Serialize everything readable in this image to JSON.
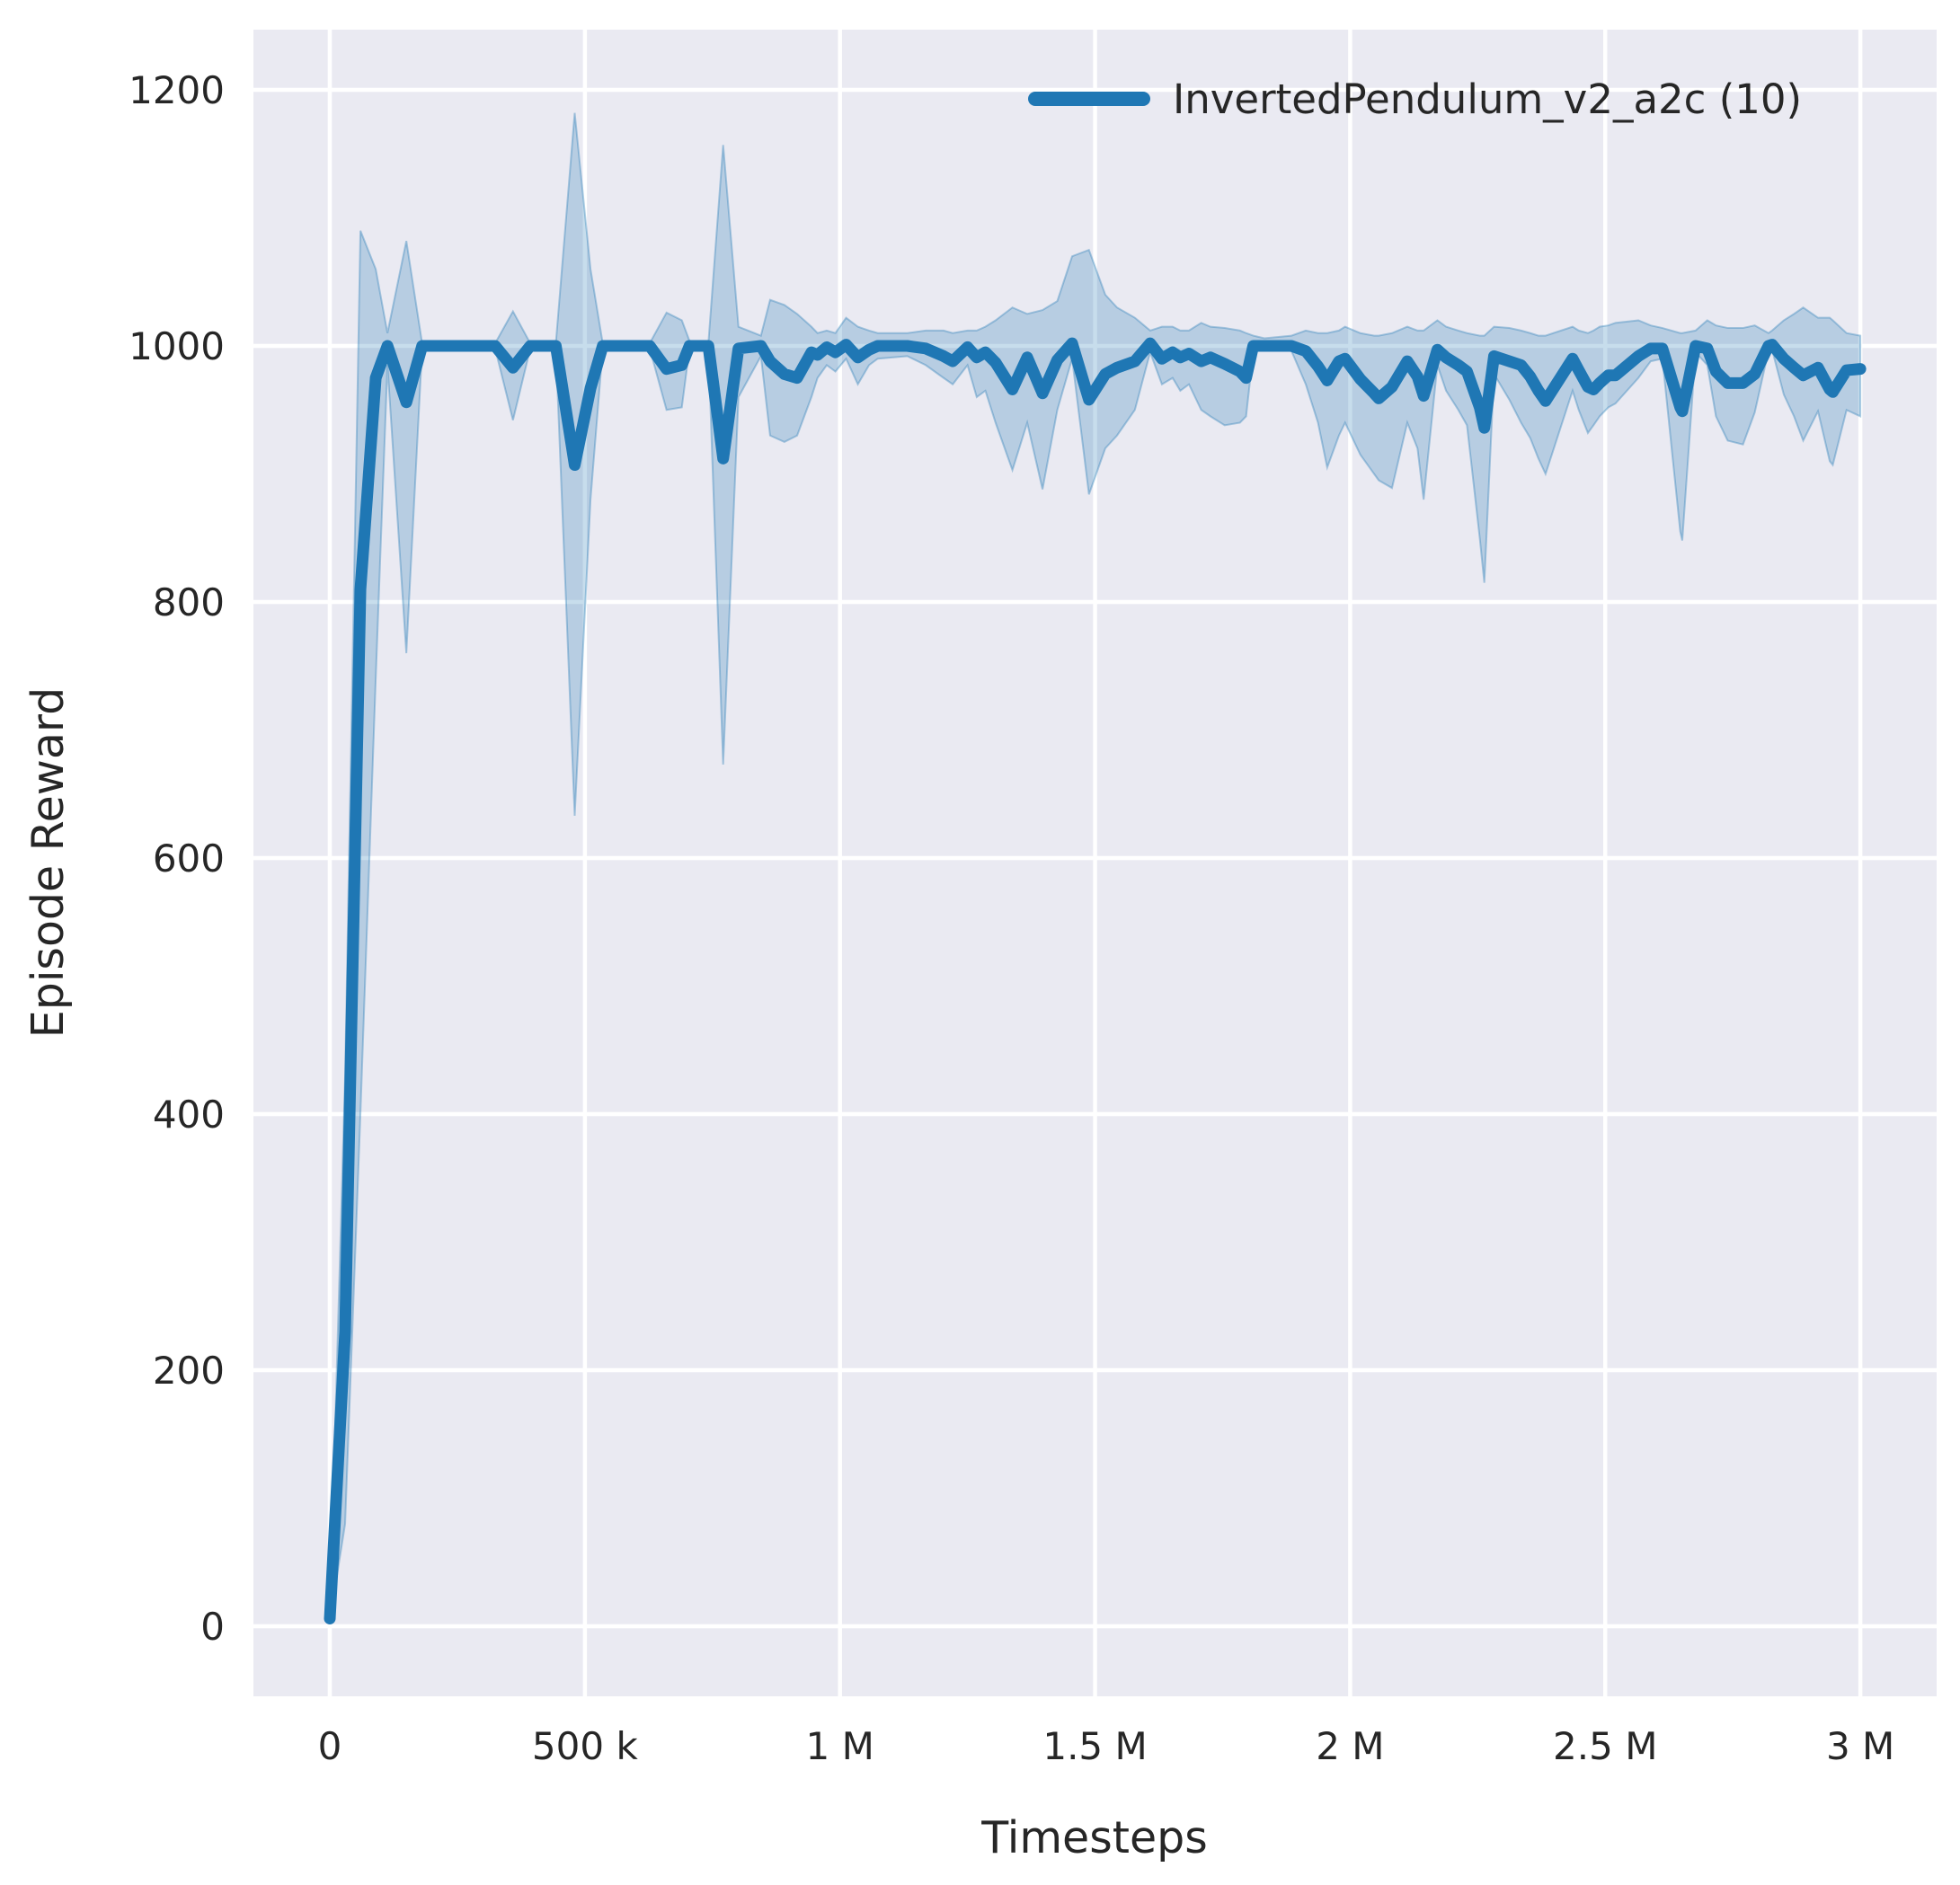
{
  "figure": {
    "background": "#ffffff",
    "axes_background": "#eaeaf2",
    "gridline_color": "#ffffff"
  },
  "legend": {
    "label": "InvertedPendulum_v2_a2c (10)",
    "line_color": "#1f77b4"
  },
  "chart_data": {
    "type": "line",
    "title": "",
    "xlabel": "Timesteps",
    "ylabel": "Episode Reward",
    "grid": true,
    "legend_position": "upper right",
    "xlim_timesteps": [
      -150000,
      3150000
    ],
    "ylim": [
      -55,
      1247
    ],
    "x_ticks": [
      {
        "value_k": 0,
        "label": "0"
      },
      {
        "value_k": 500,
        "label": "500 k"
      },
      {
        "value_k": 1000,
        "label": "1 M"
      },
      {
        "value_k": 1500,
        "label": "1.5 M"
      },
      {
        "value_k": 2000,
        "label": "2 M"
      },
      {
        "value_k": 2500,
        "label": "2.5 M"
      },
      {
        "value_k": 3000,
        "label": "3 M"
      }
    ],
    "y_ticks": [
      {
        "value": 0,
        "label": "0"
      },
      {
        "value": 200,
        "label": "200"
      },
      {
        "value": 400,
        "label": "400"
      },
      {
        "value": 600,
        "label": "600"
      },
      {
        "value": 800,
        "label": "800"
      },
      {
        "value": 1000,
        "label": "1000"
      },
      {
        "value": 1200,
        "label": "1200"
      }
    ],
    "series": [
      {
        "name": "InvertedPendulum_v2_a2c (10)",
        "color": "#1f77b4",
        "band_fill_opacity": 0.25,
        "x_timesteps_k": [
          0,
          30,
          60,
          90,
          113,
          150,
          181,
          240,
          324,
          359,
          393,
          443,
          480,
          511,
          535,
          600,
          627,
          660,
          690,
          705,
          742,
          771,
          801,
          845,
          863,
          891,
          916,
          944,
          956,
          974,
          991,
          1012,
          1035,
          1057,
          1074,
          1132,
          1168,
          1203,
          1221,
          1250,
          1268,
          1285,
          1305,
          1338,
          1367,
          1397,
          1426,
          1455,
          1488,
          1520,
          1543,
          1578,
          1608,
          1631,
          1652,
          1667,
          1684,
          1708,
          1726,
          1754,
          1784,
          1796,
          1810,
          1832,
          1885,
          1913,
          1937,
          1955,
          1978,
          1990,
          2020,
          2047,
          2056,
          2082,
          2112,
          2132,
          2144,
          2171,
          2188,
          2212,
          2229,
          2254,
          2263,
          2282,
          2312,
          2335,
          2353,
          2369,
          2383,
          2436,
          2448,
          2466,
          2477,
          2489,
          2506,
          2520,
          2565,
          2589,
          2612,
          2647,
          2651,
          2677,
          2700,
          2717,
          2740,
          2770,
          2793,
          2820,
          2827,
          2850,
          2870,
          2888,
          2917,
          2940,
          2946,
          2973,
          3000
        ],
        "mean_reward": [
          6,
          230,
          810,
          975,
          1000,
          956,
          1000,
          1000,
          1000,
          983,
          1000,
          1000,
          907,
          967,
          1000,
          1000,
          1000,
          982,
          985,
          1000,
          1000,
          912,
          998,
          1000,
          988,
          978,
          975,
          995,
          993,
          999,
          995,
          1001,
          991,
          997,
          1000,
          1000,
          998,
          992,
          988,
          999,
          991,
          995,
          987,
          966,
          991,
          963,
          989,
          1002,
          958,
          978,
          983,
          988,
          1002,
          990,
          995,
          991,
          994,
          988,
          991,
          986,
          980,
          975,
          1000,
          1000,
          1000,
          996,
          984,
          973,
          988,
          990,
          974,
          963,
          959,
          968,
          988,
          976,
          961,
          997,
          991,
          985,
          980,
          952,
          936,
          992,
          988,
          985,
          976,
          965,
          957,
          990,
          981,
          968,
          966,
          971,
          977,
          977,
          992,
          998,
          998,
          952,
          949,
          1000,
          998,
          980,
          971,
          971,
          978,
          1000,
          1001,
          990,
          983,
          977,
          983,
          966,
          964,
          981,
          982
        ],
        "band_low": [
          4,
          80,
          400,
          740,
          985,
          760,
          998,
          998,
          998,
          942,
          998,
          998,
          633,
          880,
          998,
          998,
          998,
          950,
          952,
          998,
          998,
          673,
          960,
          992,
          930,
          925,
          930,
          960,
          975,
          985,
          980,
          990,
          970,
          985,
          990,
          992,
          985,
          975,
          970,
          985,
          960,
          965,
          940,
          903,
          940,
          888,
          950,
          990,
          884,
          920,
          930,
          950,
          995,
          970,
          975,
          965,
          970,
          950,
          945,
          938,
          940,
          945,
          995,
          998,
          996,
          970,
          940,
          905,
          930,
          940,
          915,
          900,
          895,
          889,
          940,
          920,
          880,
          985,
          965,
          950,
          938,
          850,
          815,
          978,
          958,
          940,
          928,
          912,
          900,
          965,
          950,
          932,
          938,
          945,
          952,
          955,
          975,
          988,
          990,
          855,
          848,
          995,
          985,
          945,
          926,
          923,
          948,
          996,
          997,
          962,
          945,
          926,
          949,
          910,
          907,
          950,
          945
        ],
        "band_high": [
          9,
          430,
          1090,
          1060,
          1010,
          1082,
          1002,
          1002,
          1002,
          1027,
          1002,
          1002,
          1182,
          1060,
          1002,
          1002,
          1002,
          1026,
          1020,
          1004,
          1002,
          1157,
          1015,
          1008,
          1036,
          1032,
          1025,
          1015,
          1010,
          1012,
          1010,
          1022,
          1015,
          1012,
          1010,
          1010,
          1012,
          1012,
          1010,
          1012,
          1012,
          1015,
          1020,
          1030,
          1025,
          1028,
          1035,
          1070,
          1075,
          1040,
          1030,
          1022,
          1012,
          1015,
          1015,
          1012,
          1012,
          1018,
          1015,
          1014,
          1012,
          1010,
          1008,
          1006,
          1008,
          1012,
          1010,
          1010,
          1012,
          1015,
          1010,
          1008,
          1008,
          1010,
          1015,
          1012,
          1012,
          1020,
          1015,
          1012,
          1010,
          1008,
          1008,
          1015,
          1014,
          1012,
          1010,
          1008,
          1008,
          1015,
          1012,
          1010,
          1012,
          1015,
          1016,
          1018,
          1020,
          1016,
          1014,
          1010,
          1010,
          1012,
          1020,
          1016,
          1014,
          1014,
          1016,
          1010,
          1012,
          1020,
          1025,
          1030,
          1022,
          1022,
          1020,
          1010,
          1008
        ]
      }
    ]
  }
}
